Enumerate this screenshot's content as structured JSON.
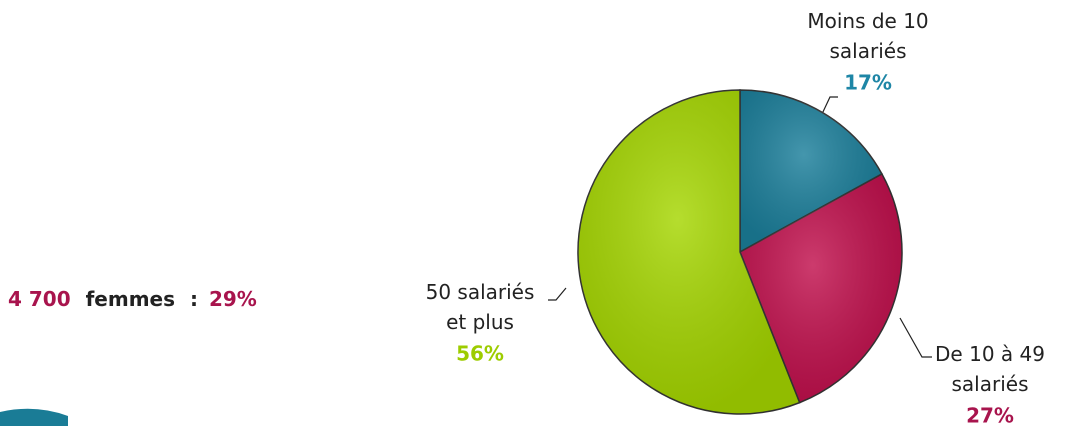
{
  "chart_data": {
    "type": "pie",
    "categories": [
      "Moins de 10 salariés",
      "De 10 à 49 salariés",
      "50 salariés et plus"
    ],
    "values": [
      17,
      27,
      56
    ],
    "value_labels": [
      "17%",
      "27%",
      "56%"
    ],
    "colors": [
      "#1b7f9b",
      "#c1104d",
      "#a5d600"
    ],
    "label_colors": [
      "#1e86a6",
      "#a8144d",
      "#9dcc00"
    ]
  },
  "note": {
    "count": "4 700",
    "label": "femmes",
    "separator": ":",
    "share": "29%"
  }
}
